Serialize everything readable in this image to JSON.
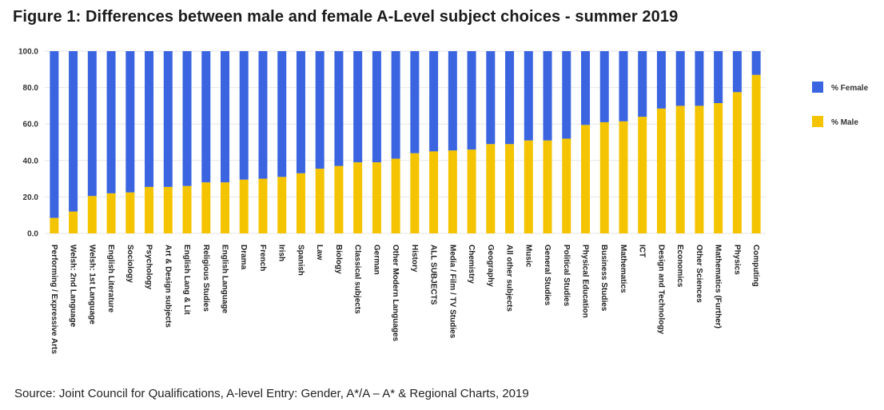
{
  "title": "Figure 1: Differences between male and female A-Level subject choices - summer 2019",
  "source": "Source: Joint Council for Qualifications, A-level Entry: Gender, A*/A – A* & Regional Charts, 2019",
  "chart_data": {
    "type": "bar",
    "stacked": true,
    "categories": [
      "Performing / Expressive Arts",
      "Welsh: 2nd Language",
      "Welsh: 1st Language",
      "English Literature",
      "Sociology",
      "Psychology",
      "Art & Design subjects",
      "English Lang & Lit",
      "Religious Studies",
      "English Language",
      "Drama",
      "French",
      "Irish",
      "Spanish",
      "Law",
      "Biology",
      "Classical subjects",
      "German",
      "Other Modern Languages",
      "History",
      "ALL SUBJECTS",
      "Media / Film / TV Studies",
      "Chemistry",
      "Geography",
      "All other subjects",
      "Music",
      "General Studies",
      "Political Studies",
      "Physical Education",
      "Business Studies",
      "Mathematics",
      "ICT",
      "Design and Technology",
      "Economics",
      "Other Sciences",
      "Mathematics (Further)",
      "Physics",
      "Computing"
    ],
    "series": [
      {
        "name": "% Male",
        "color": "#f5c400",
        "values": [
          8.5,
          12,
          20.5,
          22,
          22.5,
          25.5,
          25.5,
          26,
          28,
          28,
          29.5,
          30,
          31,
          33,
          35.5,
          37,
          39,
          39,
          41,
          44,
          45,
          45.5,
          46,
          49,
          49,
          51,
          51,
          52,
          59.5,
          61,
          61.5,
          64,
          68.5,
          70,
          70,
          71.5,
          77.5,
          87
        ]
      },
      {
        "name": "% Female",
        "color": "#3a64e0",
        "values": [
          91.5,
          88,
          79.5,
          78,
          77.5,
          74.5,
          74.5,
          74,
          72,
          72,
          70.5,
          70,
          69,
          67,
          64.5,
          63,
          61,
          61,
          59,
          56,
          55,
          54.5,
          54,
          51,
          51,
          49,
          49,
          48,
          40.5,
          39,
          38.5,
          36,
          31.5,
          30,
          30,
          28.5,
          22.5,
          13
        ]
      }
    ],
    "yticks": [
      "0.0",
      "20.0",
      "40.0",
      "60.0",
      "80.0",
      "100.0"
    ],
    "ylim": [
      0,
      100
    ],
    "legend": [
      "% Female",
      "% Male"
    ],
    "legend_position": "right",
    "grid": true
  }
}
